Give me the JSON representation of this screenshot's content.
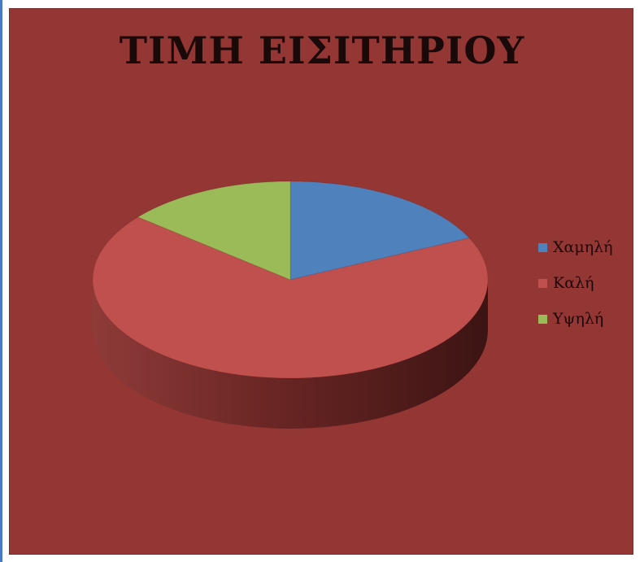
{
  "chart_data": {
    "type": "pie",
    "style": "3d",
    "title": "ΤΙΜΗ ΕΙΣΙΤΗΡΙΟΥ",
    "categories": [
      "Χαμηλή",
      "Καλή",
      "Υψηλή"
    ],
    "values": [
      18,
      68,
      14
    ],
    "colors": [
      "#4f81bd",
      "#c0504d",
      "#9bbb59"
    ],
    "background_color": "#943634",
    "legend": "right"
  }
}
